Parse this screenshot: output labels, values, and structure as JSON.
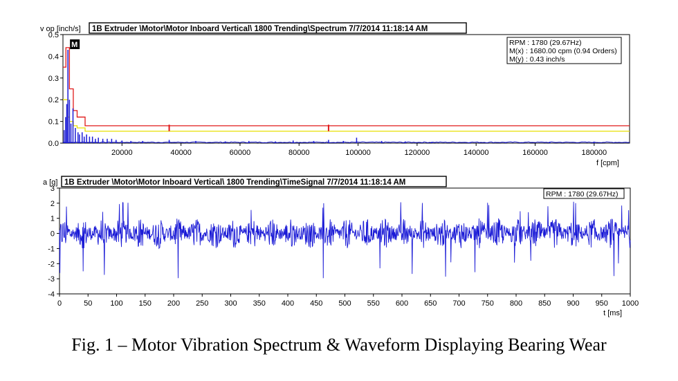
{
  "chart_data": [
    {
      "type": "line",
      "title": "1B Extruder \\Motor\\Motor Inboard Vertical\\ 1800 Trending\\Spectrum 7/7/2014 11:18:14 AM",
      "ylabel": "v op [inch/s]",
      "xlabel": "f [cpm]",
      "xlim": [
        0,
        192000
      ],
      "ylim": [
        0,
        0.5
      ],
      "xticks": [
        20000,
        40000,
        60000,
        80000,
        100000,
        120000,
        140000,
        160000,
        180000
      ],
      "yticks": [
        0.0,
        0.1,
        0.2,
        0.3,
        0.4,
        0.5
      ],
      "ytick_labels": [
        "0.0",
        "0.1",
        "0.2",
        "0.3",
        "0.4",
        "0.5"
      ],
      "grid": false,
      "legend": {
        "placement": "top-right",
        "lines": [
          "RPM : 1780 (29.67Hz)",
          "M(x) : 1680.00 cpm (0.94 Orders)",
          "M(y) : 0.43 inch/s"
        ]
      },
      "marker": {
        "label": "M",
        "x": 1680,
        "y": 0.43
      },
      "series": [
        {
          "color": "#1a1ad6",
          "peaks": [
            [
              400,
              0.06
            ],
            [
              900,
              0.12
            ],
            [
              1300,
              0.18
            ],
            [
              1680,
              0.43
            ],
            [
              2200,
              0.2
            ],
            [
              2700,
              0.09
            ],
            [
              3400,
              0.16
            ],
            [
              4200,
              0.07
            ],
            [
              5100,
              0.05
            ],
            [
              5600,
              0.04
            ],
            [
              6500,
              0.05
            ],
            [
              7200,
              0.03
            ],
            [
              8000,
              0.04
            ],
            [
              9000,
              0.03
            ],
            [
              10000,
              0.03
            ],
            [
              11000,
              0.02
            ],
            [
              12000,
              0.025
            ],
            [
              13500,
              0.02
            ],
            [
              15000,
              0.02
            ],
            [
              16500,
              0.02
            ],
            [
              18000,
              0.015
            ],
            [
              20000,
              0.012
            ],
            [
              23000,
              0.01
            ],
            [
              27000,
              0.01
            ],
            [
              36000,
              0.015
            ],
            [
              45000,
              0.01
            ],
            [
              55000,
              0.008
            ],
            [
              63000,
              0.01
            ],
            [
              72000,
              0.008
            ],
            [
              78000,
              0.012
            ],
            [
              85000,
              0.01
            ],
            [
              90000,
              0.015
            ],
            [
              95000,
              0.01
            ],
            [
              99500,
              0.025
            ],
            [
              108000,
              0.01
            ],
            [
              116000,
              0.008
            ],
            [
              125000,
              0.006
            ],
            [
              138000,
              0.005
            ],
            [
              150000,
              0.005
            ],
            [
              165000,
              0.004
            ],
            [
              180000,
              0.004
            ]
          ]
        },
        {
          "color": "#e01818",
          "steps": [
            [
              0,
              0.35
            ],
            [
              1000,
              0.44
            ],
            [
              1680,
              0.44
            ],
            [
              2200,
              0.25
            ],
            [
              3500,
              0.15
            ],
            [
              4800,
              0.12
            ],
            [
              7500,
              0.08
            ],
            [
              36000,
              0.08
            ],
            [
              90000,
              0.08
            ],
            [
              192000,
              0.08
            ]
          ]
        },
        {
          "color": "#e8e000",
          "steps": [
            [
              0,
              0.2
            ],
            [
              1000,
              0.2
            ],
            [
              1680,
              0.12
            ],
            [
              2200,
              0.1
            ],
            [
              3500,
              0.08
            ],
            [
              4800,
              0.07
            ],
            [
              7500,
              0.055
            ],
            [
              36000,
              0.055
            ],
            [
              90000,
              0.055
            ],
            [
              192000,
              0.055
            ]
          ]
        }
      ]
    },
    {
      "type": "line",
      "title": "1B Extruder \\Motor\\Motor Inboard Vertical\\ 1800 Trending\\TimeSignal 7/7/2014 11:18:14 AM",
      "ylabel": "a [g]",
      "xlabel": "t [ms]",
      "xlim": [
        0,
        1000
      ],
      "ylim": [
        -4,
        3
      ],
      "xticks": [
        0,
        50,
        100,
        150,
        200,
        250,
        300,
        350,
        400,
        450,
        500,
        550,
        600,
        650,
        700,
        750,
        800,
        850,
        900,
        950,
        1000
      ],
      "yticks": [
        -4,
        -3,
        -2,
        -1,
        0,
        1,
        2,
        3
      ],
      "grid": false,
      "legend": {
        "placement": "top-right",
        "lines": [
          "RPM : 1780 (29.67Hz)"
        ]
      },
      "series": [
        {
          "color": "#1a1ad6",
          "waveform": {
            "samples": 1400,
            "typical_amplitude_g": 1.0,
            "peak_max_g": 2.2,
            "peak_min_g": -3.0
          }
        }
      ]
    }
  ],
  "caption": "Fig. 1 – Motor Vibration Spectrum & Waveform Displaying Bearing Wear"
}
